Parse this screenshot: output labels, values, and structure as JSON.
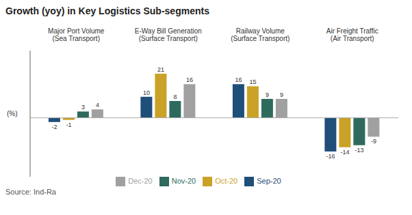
{
  "chart_data": {
    "type": "bar",
    "title": "Growth (yoy) in Key Logistics Sub-segments",
    "ylabel": "(%)",
    "annotations": [
      "Source: Ind-Ra"
    ],
    "categories": [
      "Major Port Volume\n(Sea Transport)",
      "E-Way Bill Generation\n(Surface Transport)",
      "Railway Volume\n(Surface Transport)",
      "Air Freight Traffic\n(Air Transport)"
    ],
    "series": [
      {
        "name": "Sep-20",
        "color": "#1f4e79",
        "values": [
          -2,
          10,
          16,
          -16
        ]
      },
      {
        "name": "Oct-20",
        "color": "#c9a227",
        "values": [
          -1,
          21,
          15,
          -14
        ]
      },
      {
        "name": "Nov-20",
        "color": "#2e6b5e",
        "values": [
          3,
          8,
          9,
          -13
        ]
      },
      {
        "name": "Dec-20",
        "color": "#a0a0a0",
        "values": [
          4,
          16,
          9,
          -9
        ]
      }
    ],
    "ylim": [
      -28,
      32
    ],
    "data_labels": true,
    "legend": "bottom",
    "grid": false,
    "tick_labels": "x"
  }
}
